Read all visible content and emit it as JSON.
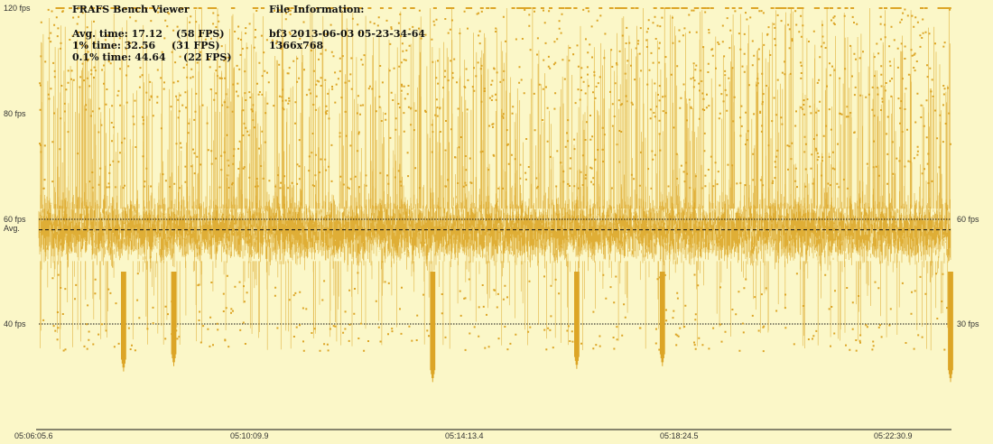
{
  "app": {
    "title": "FRAFS Bench Viewer"
  },
  "stats": {
    "avg_label": "Avg. time: 17.12",
    "avg_fps": "(58 FPS)",
    "p1_label": "1% time: 32.56",
    "p1_fps": "(31 FPS)",
    "p01_label": "0.1% time: 44.64",
    "p01_fps": "(22 FPS)"
  },
  "file_info": {
    "heading": "File Information:",
    "name": "bf3 2013-06-03 05-23-34-64",
    "resolution": "1366x768"
  },
  "colors": {
    "background": "#fbf7c8",
    "series": "#dca526",
    "axis": "#111111"
  },
  "chart_data": {
    "type": "line",
    "series_color": "#dca526",
    "ylim": [
      0,
      120
    ],
    "y_ticks_left": [
      {
        "value": 120,
        "label": "120 fps"
      },
      {
        "value": 80,
        "label": "80 fps"
      },
      {
        "value": 60,
        "label": "60 fps"
      },
      {
        "value": 40,
        "label": "40 fps"
      }
    ],
    "y_ticks_right": [
      {
        "value": 60,
        "label": "60 fps"
      },
      {
        "value": 30,
        "label": "30 fps"
      }
    ],
    "x_ticks": [
      "05:06:05.6",
      "05:10:09.9",
      "05:14:13.4",
      "05:18:24.5",
      "05:22:30.9"
    ],
    "reference_lines": [
      {
        "value": 60,
        "label": "60 fps"
      },
      {
        "value": 40,
        "label": "40 fps"
      }
    ],
    "average": {
      "value": 58,
      "label": "Avg."
    },
    "typical_band": [
      50,
      67
    ],
    "dips": [
      {
        "t": 0.093,
        "min": 22
      },
      {
        "t": 0.148,
        "min": 24
      },
      {
        "t": 0.432,
        "min": 18
      },
      {
        "t": 0.59,
        "min": 23
      },
      {
        "t": 0.684,
        "min": 24
      },
      {
        "t": 1.0,
        "min": 18
      }
    ]
  }
}
